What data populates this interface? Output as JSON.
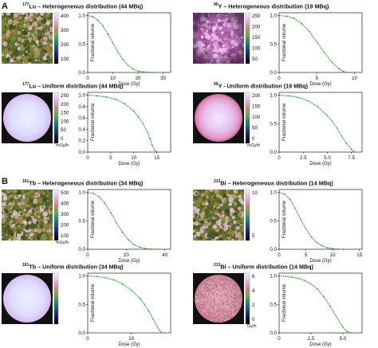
{
  "sections": [
    "A",
    "B"
  ],
  "units": {
    "dose_rate": "mGy/h",
    "dose": "Gy/h"
  },
  "chart_data": [
    {
      "type": "line",
      "title_iso": "177",
      "title_el": "Lu",
      "title_rest": " – Heterogeneous distribution (44 MBq)",
      "map": "heterogeneous",
      "colorbar_ticks": [
        "400",
        "300",
        "200",
        "100"
      ],
      "colorbar_unit": "",
      "xlabel": "Dose (Gy)",
      "ylabel": "Fractional volume",
      "xlim": [
        0,
        33
      ],
      "ylim": [
        0,
        1.05
      ],
      "xticks": [
        "0",
        "10",
        "20",
        "30"
      ],
      "xtick_vals": [
        0,
        10,
        20,
        30
      ],
      "yticks": [
        "0.0",
        "0.5",
        "1.0"
      ],
      "ytick_vals": [
        0,
        0.5,
        1
      ],
      "x": [
        0,
        2,
        4,
        6,
        8,
        10,
        12,
        14,
        16,
        18,
        20,
        22,
        24,
        26
      ],
      "y": [
        1.0,
        0.98,
        0.92,
        0.82,
        0.68,
        0.52,
        0.36,
        0.23,
        0.13,
        0.06,
        0.025,
        0.01,
        0.003,
        0.0
      ]
    },
    {
      "type": "line",
      "title_iso": "90",
      "title_el": "Y",
      "title_rest": " – Heterogeneous distribution (19 MBq)",
      "map": "heterogeneous-pink",
      "colorbar_ticks": [
        "250",
        "200",
        "150",
        "100",
        "50"
      ],
      "colorbar_unit": "",
      "xlabel": "Dose (Gy)",
      "ylabel": "Fractional volume",
      "xlim": [
        0,
        11
      ],
      "ylim": [
        0,
        1.05
      ],
      "xticks": [
        "0",
        "5",
        "10"
      ],
      "xtick_vals": [
        0,
        5,
        10
      ],
      "yticks": [],
      "ytick_vals": [],
      "x": [
        0,
        1,
        2,
        3,
        4,
        5,
        6,
        7,
        8,
        8.5,
        9
      ],
      "y": [
        1.0,
        0.99,
        0.95,
        0.86,
        0.72,
        0.54,
        0.35,
        0.18,
        0.06,
        0.02,
        0.0
      ]
    },
    {
      "type": "line",
      "title_iso": "177",
      "title_el": "Lu",
      "title_rest": " – Uniform distribution (44 MBq)",
      "map": "uniform",
      "colorbar_ticks": [
        "250",
        "200",
        "150",
        "100",
        "50",
        "0"
      ],
      "colorbar_unit": "mGy/h",
      "xlabel": "Dose (Gy)",
      "ylabel": "Fractional volume",
      "xlim": [
        0,
        18
      ],
      "ylim": [
        0,
        1.05
      ],
      "xticks": [
        "0",
        "5",
        "10",
        "15"
      ],
      "xtick_vals": [
        0,
        5,
        10,
        15
      ],
      "yticks": [
        "0.0",
        "0.2",
        "0.4",
        "0.6",
        "0.8",
        "1.0"
      ],
      "ytick_vals": [
        0,
        0.2,
        0.4,
        0.6,
        0.8,
        1
      ],
      "x": [
        0,
        2,
        4,
        6,
        8,
        10,
        11,
        12,
        13,
        13.5,
        14,
        14.5,
        15
      ],
      "y": [
        1.0,
        0.99,
        0.97,
        0.93,
        0.85,
        0.72,
        0.62,
        0.5,
        0.35,
        0.24,
        0.12,
        0.04,
        0.0
      ]
    },
    {
      "type": "line",
      "title_iso": "90",
      "title_el": "Y",
      "title_rest": " - Uniform distribution (19 MBq)",
      "map": "uniform-warm",
      "colorbar_ticks": [
        "200",
        "150",
        "100",
        "50",
        "0"
      ],
      "colorbar_unit": "mGy/h",
      "xlabel": "Dose (Gy)",
      "ylabel": "Fractional volume",
      "xlim": [
        0,
        8.6
      ],
      "ylim": [
        0,
        1.05
      ],
      "xticks": [
        "0",
        "2.5",
        "5.0",
        "7.5"
      ],
      "xtick_vals": [
        0,
        2.5,
        5,
        7.5
      ],
      "yticks": [],
      "ytick_vals": [],
      "x": [
        0,
        1,
        2,
        3,
        4,
        5,
        5.5,
        6,
        6.5,
        7,
        7.5,
        7.8
      ],
      "y": [
        1.0,
        0.99,
        0.96,
        0.9,
        0.8,
        0.64,
        0.54,
        0.42,
        0.28,
        0.15,
        0.05,
        0.0
      ]
    },
    {
      "type": "line",
      "title_iso": "161",
      "title_el": "Tb",
      "title_rest": " – Heterogeneous distribution (34 MBq)",
      "map": "heterogeneous",
      "colorbar_ticks": [
        "500",
        "400",
        "300",
        "200",
        "100"
      ],
      "colorbar_unit": "mGy/h",
      "xlabel": "Dose (Gy)",
      "ylabel": "Fractional volume",
      "xlim": [
        0,
        43
      ],
      "ylim": [
        0,
        1.05
      ],
      "xticks": [
        "0",
        "20",
        "40"
      ],
      "xtick_vals": [
        0,
        20,
        40
      ],
      "yticks": [],
      "ytick_vals": [],
      "x": [
        0,
        3,
        6,
        9,
        12,
        15,
        18,
        21,
        24,
        27,
        30,
        33,
        36
      ],
      "y": [
        1.0,
        0.98,
        0.92,
        0.8,
        0.64,
        0.46,
        0.3,
        0.17,
        0.08,
        0.035,
        0.012,
        0.003,
        0.0
      ]
    },
    {
      "type": "line",
      "title_iso": "213",
      "title_el": "Bi",
      "title_rest": " – Heterogeneous distribution (14 MBq)",
      "map": "heterogeneous",
      "colorbar_ticks": [
        "10",
        "5"
      ],
      "colorbar_unit": "",
      "xlabel": "Dose (Gy)",
      "ylabel": "Fractional volume",
      "xlim": [
        0,
        15.5
      ],
      "ylim": [
        0,
        1.05
      ],
      "xticks": [
        "0",
        "5",
        "10",
        "15"
      ],
      "xtick_vals": [
        0,
        5,
        10,
        15
      ],
      "yticks": [],
      "ytick_vals": [],
      "x": [
        0,
        1,
        2,
        3,
        4,
        5,
        6,
        7,
        8,
        9,
        10,
        11,
        12
      ],
      "y": [
        1.0,
        0.97,
        0.88,
        0.72,
        0.53,
        0.36,
        0.22,
        0.12,
        0.06,
        0.025,
        0.01,
        0.003,
        0.0
      ]
    },
    {
      "type": "line",
      "title_iso": "161",
      "title_el": "Tb",
      "title_rest": " – Uniform distribution (34 MBq)",
      "map": "uniform",
      "colorbar_ticks": [],
      "colorbar_unit": "",
      "xlabel": "Dose (Gy)",
      "ylabel": "Fractional volume",
      "xlim": [
        0,
        19
      ],
      "ylim": [
        0,
        1.05
      ],
      "xticks": [
        "0",
        "10"
      ],
      "xtick_vals": [
        0,
        10
      ],
      "yticks": [],
      "ytick_vals": [],
      "x": [
        0,
        2,
        4,
        6,
        8,
        10,
        12,
        13,
        14,
        15,
        16,
        16.5,
        17
      ],
      "y": [
        1.0,
        0.99,
        0.97,
        0.93,
        0.86,
        0.75,
        0.6,
        0.5,
        0.38,
        0.24,
        0.1,
        0.04,
        0.0
      ]
    },
    {
      "type": "line",
      "title_iso": "213",
      "title_el": "Bi",
      "title_rest": " – Uniform distribution (14 MBq)",
      "map": "uniform-speckle",
      "colorbar_ticks": [
        "6",
        "4",
        "2",
        "0"
      ],
      "colorbar_unit": "Gy/h",
      "xlabel": "Dose (Gy)",
      "ylabel": "Fractional volume",
      "xlim": [
        0,
        6.5
      ],
      "ylim": [
        0,
        1.05
      ],
      "xticks": [
        "0",
        "2.5",
        "5.0"
      ],
      "xtick_vals": [
        0,
        2.5,
        5
      ],
      "yticks": [],
      "ytick_vals": [],
      "x": [
        0,
        0.5,
        1,
        1.5,
        2,
        2.5,
        3,
        3.5,
        4,
        4.5,
        5,
        5.3,
        5.6
      ],
      "y": [
        1.0,
        0.995,
        0.98,
        0.96,
        0.92,
        0.86,
        0.77,
        0.64,
        0.47,
        0.28,
        0.1,
        0.03,
        0.0
      ]
    }
  ]
}
